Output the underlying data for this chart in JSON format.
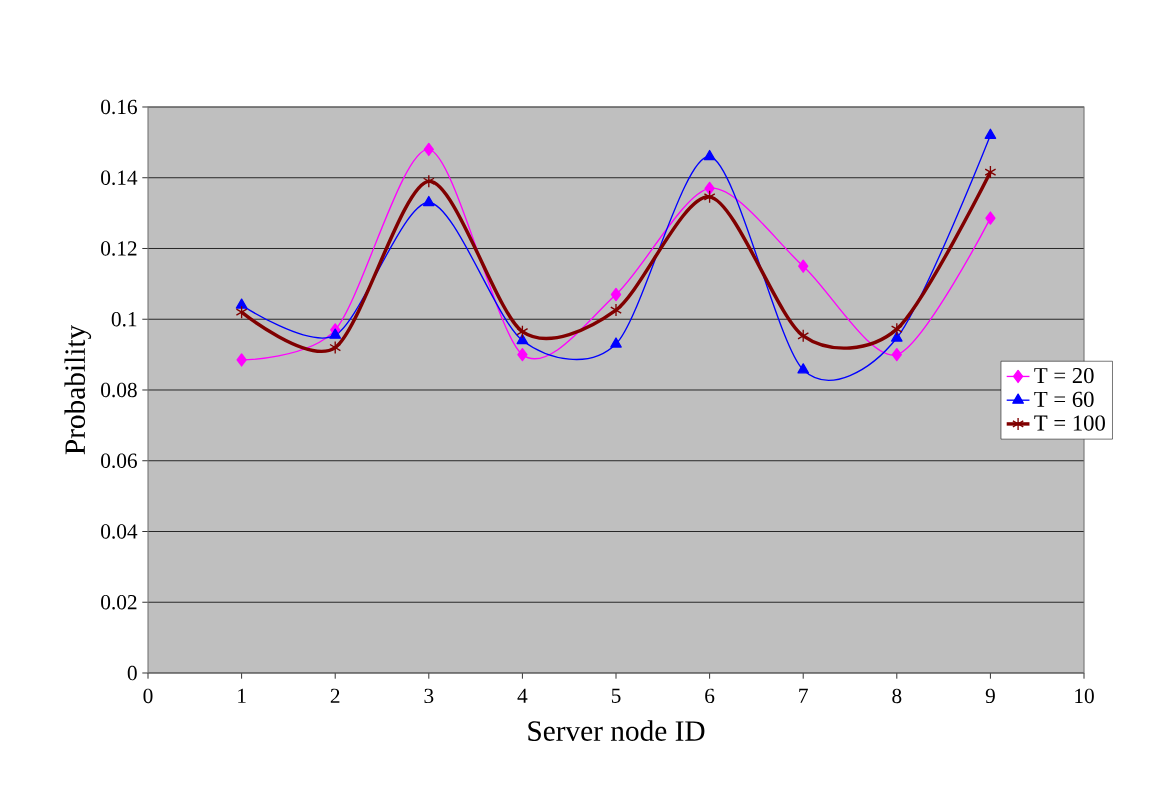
{
  "chart_data": {
    "type": "line",
    "xlabel": "Server node ID",
    "ylabel": "Probability",
    "x": [
      1,
      2,
      3,
      4,
      5,
      6,
      7,
      8,
      9
    ],
    "series": [
      {
        "name": "T = 20",
        "color": "#ff00ff",
        "marker": "diamond",
        "values": [
          0.0885,
          0.097,
          0.148,
          0.09,
          0.107,
          0.137,
          0.115,
          0.09,
          0.1286
        ]
      },
      {
        "name": "T = 60",
        "color": "#0000ff",
        "marker": "triangle",
        "values": [
          0.104,
          0.0955,
          0.133,
          0.094,
          0.093,
          0.146,
          0.0857,
          0.0947,
          0.152
        ]
      },
      {
        "name": "T = 100",
        "color": "#800000",
        "marker": "cross",
        "values": [
          0.102,
          0.092,
          0.139,
          0.0965,
          0.1026,
          0.1346,
          0.0953,
          0.0972,
          0.1416
        ]
      }
    ],
    "xlim": [
      0,
      10
    ],
    "xticks": [
      0,
      1,
      2,
      3,
      4,
      5,
      6,
      7,
      8,
      9,
      10
    ],
    "ylim": [
      0,
      0.16
    ],
    "yticks": [
      0,
      0.02,
      0.04,
      0.06,
      0.08,
      0.1,
      0.12,
      0.14,
      0.16
    ],
    "grid": "y",
    "legend": "right",
    "line_style": "solid"
  }
}
